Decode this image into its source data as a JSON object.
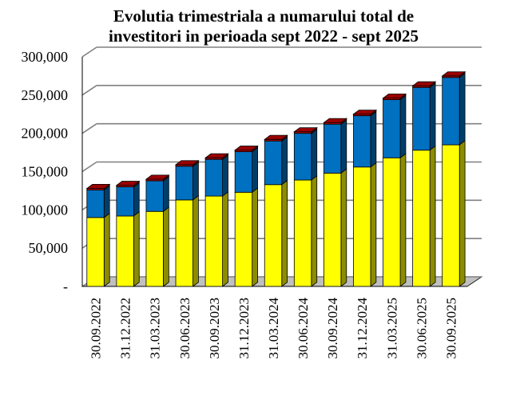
{
  "chart_data": {
    "type": "bar",
    "stacked": true,
    "style": "3d",
    "title": "Evolutia trimestriala a numarului total de investitori in perioada sept 2022 - sept 2025",
    "title_lines": [
      "Evolutia trimestriala a numarului total de",
      "investitori in perioada sept 2022 - sept 2025"
    ],
    "xlabel": "",
    "ylabel": "",
    "ylim": [
      0,
      300000
    ],
    "yticks": [
      0,
      50000,
      100000,
      150000,
      200000,
      250000,
      300000
    ],
    "ytick_labels": [
      "-",
      "50,000",
      "100,000",
      "150,000",
      "200,000",
      "250,000",
      "300,000"
    ],
    "grid": true,
    "legend": "none",
    "categories": [
      "30.09.2022",
      "31.12.2022",
      "31.03.2023",
      "30.06.2023",
      "30.09.2023",
      "31.12.2023",
      "31.03.2024",
      "30.06.2024",
      "30.09.2024",
      "31.12.2024",
      "31.03.2025",
      "30.06.2025",
      "30.09.2025"
    ],
    "series": [
      {
        "name": "series-1",
        "color": "#ffff00",
        "values": [
          90000,
          92000,
          98000,
          113000,
          118000,
          123000,
          133000,
          139000,
          148000,
          156000,
          168000,
          178000,
          185000
        ]
      },
      {
        "name": "series-2",
        "color": "#0070c0",
        "values": [
          36000,
          38000,
          40000,
          44000,
          48000,
          53000,
          57000,
          61000,
          64000,
          67000,
          76000,
          82000,
          88000
        ]
      },
      {
        "name": "series-3",
        "color": "#c00000",
        "values": [
          2000,
          2000,
          2000,
          2000,
          2000,
          2000,
          2000,
          2000,
          2000,
          2000,
          2000,
          2000,
          2000
        ]
      }
    ]
  }
}
